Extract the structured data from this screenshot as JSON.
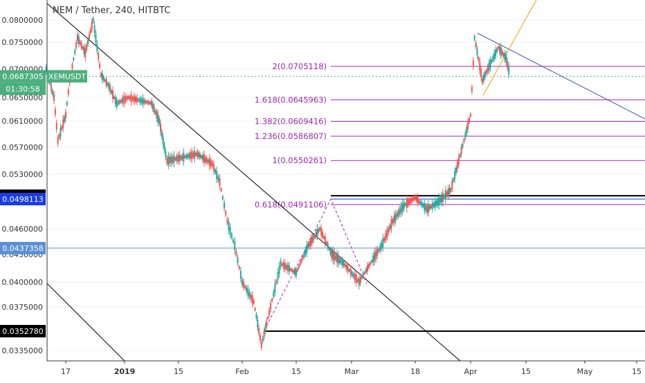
{
  "chart_data": {
    "type": "line",
    "title": "NEM / Tether, 240, HITBTC",
    "y_ticks": [
      "0.0800000",
      "0.0750000",
      "0.0700000",
      "0.0650000",
      "0.0610000",
      "0.0570000",
      "0.0530000",
      "0.0460000",
      "0.0430000",
      "0.0400000",
      "0.0375000",
      "0.0335000"
    ],
    "x_ticks": [
      {
        "label": "17",
        "date": "2018-12-17"
      },
      {
        "label": "2019",
        "date": "2019-01-01"
      },
      {
        "label": "15",
        "date": "2019-01-15"
      },
      {
        "label": "Feb",
        "date": "2019-02-01"
      },
      {
        "label": "15",
        "date": "2019-02-15"
      },
      {
        "label": "Mar",
        "date": "2019-03-01"
      },
      {
        "label": "18",
        "date": "2019-03-18"
      },
      {
        "label": "Apr",
        "date": "2019-04-01"
      },
      {
        "label": "15",
        "date": "2019-04-15"
      },
      {
        "label": "May",
        "date": "2019-05-01"
      },
      {
        "label": "15",
        "date": "2019-05-15"
      }
    ],
    "price_path": [
      [
        "2018-12-12",
        0.07
      ],
      [
        "2018-12-14",
        0.065
      ],
      [
        "2018-12-15",
        0.058
      ],
      [
        "2018-12-17",
        0.062
      ],
      [
        "2018-12-18",
        0.068
      ],
      [
        "2018-12-20",
        0.076
      ],
      [
        "2018-12-22",
        0.073
      ],
      [
        "2018-12-24",
        0.08
      ],
      [
        "2018-12-26",
        0.069
      ],
      [
        "2018-12-28",
        0.067
      ],
      [
        "2018-12-30",
        0.064
      ],
      [
        "2019-01-02",
        0.065
      ],
      [
        "2019-01-05",
        0.0645
      ],
      [
        "2019-01-08",
        0.064
      ],
      [
        "2019-01-10",
        0.061
      ],
      [
        "2019-01-12",
        0.055
      ],
      [
        "2019-01-16",
        0.0555
      ],
      [
        "2019-01-20",
        0.056
      ],
      [
        "2019-01-24",
        0.0545
      ],
      [
        "2019-01-26",
        0.052
      ],
      [
        "2019-01-28",
        0.047
      ],
      [
        "2019-01-30",
        0.044
      ],
      [
        "2019-02-01",
        0.04
      ],
      [
        "2019-02-04",
        0.038
      ],
      [
        "2019-02-06",
        0.034
      ],
      [
        "2019-02-08",
        0.037
      ],
      [
        "2019-02-11",
        0.042
      ],
      [
        "2019-02-15",
        0.041
      ],
      [
        "2019-02-18",
        0.044
      ],
      [
        "2019-02-21",
        0.046
      ],
      [
        "2019-02-24",
        0.043
      ],
      [
        "2019-02-27",
        0.042
      ],
      [
        "2019-03-03",
        0.04
      ],
      [
        "2019-03-06",
        0.042
      ],
      [
        "2019-03-09",
        0.044
      ],
      [
        "2019-03-12",
        0.047
      ],
      [
        "2019-03-15",
        0.049
      ],
      [
        "2019-03-18",
        0.05
      ],
      [
        "2019-03-21",
        0.0485
      ],
      [
        "2019-03-24",
        0.0495
      ],
      [
        "2019-03-27",
        0.051
      ],
      [
        "2019-03-29",
        0.055
      ],
      [
        "2019-04-01",
        0.062
      ],
      [
        "2019-04-02",
        0.076
      ],
      [
        "2019-04-04",
        0.068
      ],
      [
        "2019-04-06",
        0.071
      ],
      [
        "2019-04-08",
        0.074
      ],
      [
        "2019-04-10",
        0.072
      ],
      [
        "2019-04-11",
        0.0687
      ]
    ],
    "price_labels": [
      {
        "label": "0.0687305",
        "value": 0.0687305,
        "color": "#4caf7d",
        "tag": "XEMUSDT",
        "countdown": "01:30:58"
      },
      {
        "label": "0.0502453",
        "value": 0.0502453,
        "color": "#000000"
      },
      {
        "label": "0.0498113",
        "value": 0.0498113,
        "color": "#1a3be8"
      },
      {
        "label": "0.0437358",
        "value": 0.0437358,
        "color": "#5b8fd6"
      },
      {
        "label": "0.0352780",
        "value": 0.035278,
        "color": "#000000"
      }
    ],
    "fib_levels": [
      {
        "label": "2(0.0705118)",
        "value": 0.0705118
      },
      {
        "label": "1.618(0.0645963)",
        "value": 0.0645963
      },
      {
        "label": "1.382(0.0609416)",
        "value": 0.0609416
      },
      {
        "label": "1.236(0.0586807)",
        "value": 0.0586807
      },
      {
        "label": "1(0.0550261)",
        "value": 0.0550261
      },
      {
        "label": "0.618(0.0491106)",
        "value": 0.0491106
      }
    ],
    "colors": {
      "fib": "#9c27b0",
      "up": "#26a69a",
      "down": "#ef5350",
      "downtrend": "#3f51b5",
      "uptrend": "#ff9800",
      "trend": "#000000"
    }
  }
}
